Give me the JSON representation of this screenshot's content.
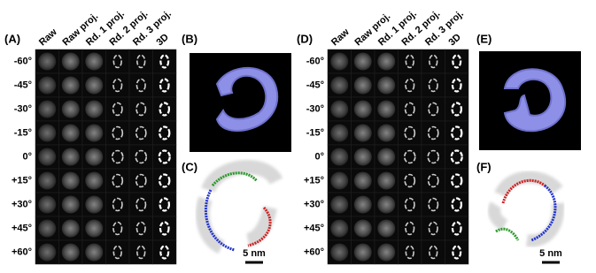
{
  "panels": [
    {
      "label": "(A)",
      "columns": [
        "Raw",
        "Raw proj.",
        "Rd. 1 proj.",
        "Rd. 2 proj.",
        "Rd. 3 proj.",
        "3D"
      ],
      "rows": [
        "-60°",
        "-45°",
        "-30°",
        "-15°",
        "0°",
        "+15°",
        "+30°",
        "+45°",
        "+60°"
      ]
    },
    {
      "label": "(D)",
      "columns": [
        "Raw",
        "Raw proj.",
        "Rd. 1 proj.",
        "Rd. 2 proj.",
        "Rd. 3 proj.",
        "3D"
      ],
      "rows": [
        "-60°",
        "-45°",
        "-30°",
        "-15°",
        "0°",
        "+15°",
        "+30°",
        "+45°",
        "+60°"
      ]
    }
  ],
  "insets": [
    {
      "label": "(B)"
    },
    {
      "label": "(C)",
      "scale_bar": "5 nm"
    },
    {
      "label": "(E)"
    },
    {
      "label": "(F)",
      "scale_bar": "5 nm"
    }
  ]
}
